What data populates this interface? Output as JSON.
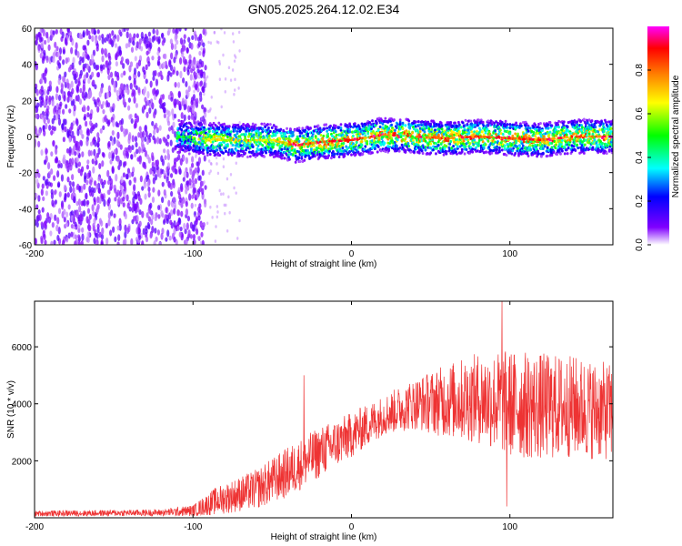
{
  "title": "GN05.2025.264.12.02.E34",
  "chart_data": [
    {
      "type": "heatmap",
      "title": "GN05.2025.264.12.02.E34",
      "xlabel": "Height of straight line (km)",
      "ylabel": "Frequency (Hz)",
      "xlim": [
        -200,
        165
      ],
      "ylim": [
        -60,
        60
      ],
      "xticks": [
        -200,
        -100,
        0,
        100
      ],
      "yticks": [
        60,
        40,
        20,
        0,
        -20,
        -40,
        -60
      ],
      "colorbar": {
        "label": "Normalized spectral amplitude",
        "range": [
          0,
          1
        ],
        "ticks": [
          "0.0",
          "0.2",
          "0.4",
          "0.6",
          "0.8"
        ],
        "colors": [
          "#ffffff",
          "#8000ff",
          "#0000ff",
          "#00ffff",
          "#00ff00",
          "#ffff00",
          "#ff8000",
          "#ff0000",
          "#ff00ff"
        ]
      },
      "regions": [
        {
          "x_range": [
            -200,
            -100
          ],
          "freq_range": [
            -60,
            60
          ],
          "amplitude": 0.1,
          "description_level": "noise"
        },
        {
          "x_range": [
            -110,
            165
          ],
          "center_freq_hz": 0,
          "bandwidth_hz": 10,
          "peak_amplitude": 1.0
        }
      ],
      "ridge_center_hz": [
        {
          "x": -110,
          "y": 0
        },
        {
          "x": -80,
          "y": -2
        },
        {
          "x": -50,
          "y": -2
        },
        {
          "x": -35,
          "y": -5
        },
        {
          "x": -20,
          "y": -3
        },
        {
          "x": 0,
          "y": -2
        },
        {
          "x": 20,
          "y": 1
        },
        {
          "x": 40,
          "y": 0
        },
        {
          "x": 60,
          "y": -1
        },
        {
          "x": 80,
          "y": 0
        },
        {
          "x": 100,
          "y": -1
        },
        {
          "x": 120,
          "y": -2
        },
        {
          "x": 140,
          "y": 0
        },
        {
          "x": 165,
          "y": 0
        }
      ]
    },
    {
      "type": "line",
      "xlabel": "Height of straight line (km)",
      "ylabel": "SNR (10 * v/v)",
      "xlim": [
        -200,
        165
      ],
      "ylim": [
        0,
        7600
      ],
      "xticks": [
        -200,
        -100,
        0,
        100
      ],
      "yticks": [
        2000,
        4000,
        6000
      ],
      "series": [
        {
          "name": "SNR",
          "color": "#ee3333",
          "envelope": [
            {
              "x": -200,
              "mean": 150,
              "spread": 100
            },
            {
              "x": -120,
              "mean": 180,
              "spread": 120
            },
            {
              "x": -100,
              "mean": 250,
              "spread": 200
            },
            {
              "x": -85,
              "mean": 600,
              "spread": 500
            },
            {
              "x": -60,
              "mean": 1000,
              "spread": 700
            },
            {
              "x": -40,
              "mean": 1600,
              "spread": 900
            },
            {
              "x": -20,
              "mean": 2300,
              "spread": 900
            },
            {
              "x": 0,
              "mean": 2900,
              "spread": 800
            },
            {
              "x": 20,
              "mean": 3600,
              "spread": 700
            },
            {
              "x": 40,
              "mean": 4000,
              "spread": 900
            },
            {
              "x": 60,
              "mean": 4100,
              "spread": 1300
            },
            {
              "x": 80,
              "mean": 4200,
              "spread": 1600
            },
            {
              "x": 100,
              "mean": 4000,
              "spread": 1900
            },
            {
              "x": 120,
              "mean": 3900,
              "spread": 1900
            },
            {
              "x": 140,
              "mean": 3900,
              "spread": 1800
            },
            {
              "x": 165,
              "mean": 3700,
              "spread": 1700
            }
          ],
          "spikes": [
            {
              "x": -30,
              "y": 5000
            },
            {
              "x": 95,
              "y": 7600
            },
            {
              "x": 98,
              "y": 400
            }
          ]
        }
      ]
    }
  ]
}
